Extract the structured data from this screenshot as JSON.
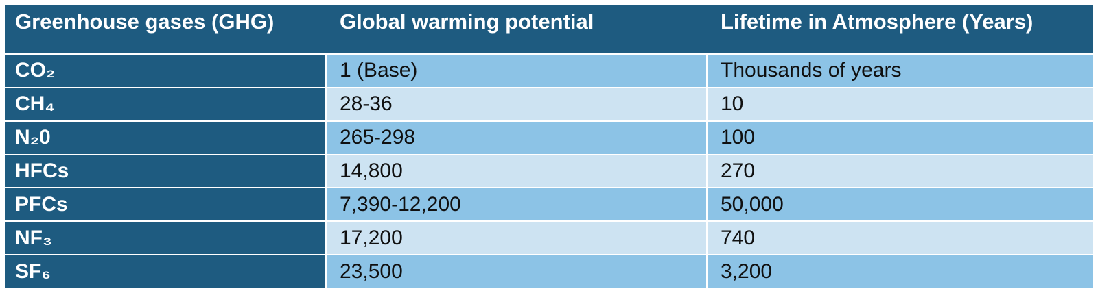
{
  "table": {
    "columns": [
      "Greenhouse gases (GHG)",
      "Global warming potential",
      "Lifetime in Atmosphere (Years)"
    ],
    "rows": [
      {
        "gas": "CO₂",
        "gwp": "1 (Base)",
        "lifetime": "Thousands of years"
      },
      {
        "gas": "CH₄",
        "gwp": "28-36",
        "lifetime": "10"
      },
      {
        "gas": "N₂0",
        "gwp": "265-298",
        "lifetime": "100"
      },
      {
        "gas": "HFCs",
        "gwp": "14,800",
        "lifetime": "270"
      },
      {
        "gas": "PFCs",
        "gwp": "7,390-12,200",
        "lifetime": "50,000"
      },
      {
        "gas": "NF₃",
        "gwp": "17,200",
        "lifetime": "740"
      },
      {
        "gas": "SF₆",
        "gwp": "23,500",
        "lifetime": "3,200"
      }
    ]
  },
  "colors": {
    "header_dark_blue": "#1E5B80",
    "row_medium_blue": "#8CC3E6",
    "row_light_blue": "#CDE3F2",
    "header_text": "#FFFFFF",
    "data_text": "#101010",
    "separator": "#FFFFFF"
  },
  "chart_data": {
    "type": "table",
    "title": "",
    "columns": [
      "Greenhouse gases (GHG)",
      "Global warming potential",
      "Lifetime in Atmosphere (Years)"
    ],
    "rows": [
      [
        "CO₂",
        "1 (Base)",
        "Thousands of years"
      ],
      [
        "CH₄",
        "28-36",
        "10"
      ],
      [
        "N₂0",
        "265-298",
        "100"
      ],
      [
        "HFCs",
        "14,800",
        "270"
      ],
      [
        "PFCs",
        "7,390-12,200",
        "50,000"
      ],
      [
        "NF₃",
        "17,200",
        "740"
      ],
      [
        "SF₆",
        "23,500",
        "3,200"
      ]
    ],
    "layout_hints": {
      "header_style": "dark blue bar, bold white text",
      "first_column_style": "dark blue, bold white text",
      "body_stripes": "rows alternate medium blue / light blue starting with medium",
      "grid": "thin white separators between rows and columns"
    }
  }
}
